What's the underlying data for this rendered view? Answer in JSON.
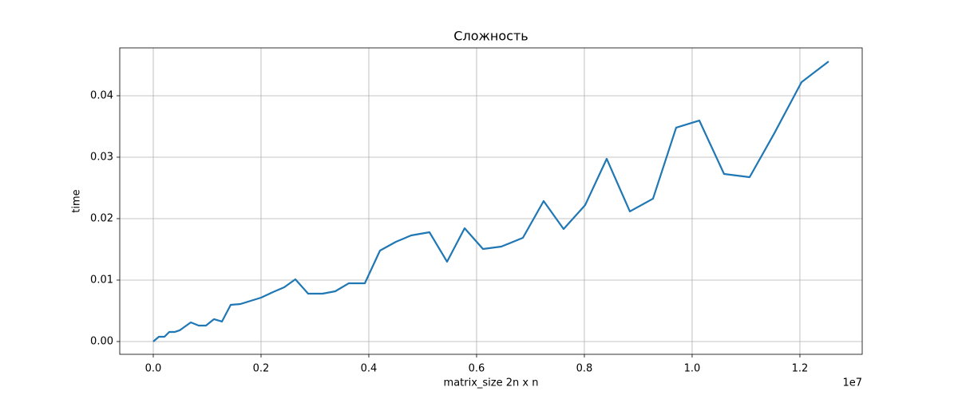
{
  "chart_data": {
    "type": "line",
    "title": "Сложность",
    "xlabel": "matrix_size 2n x n",
    "ylabel": "time",
    "x_offset_label": "1e7",
    "x": [
      0,
      103704,
      207407,
      296296,
      400000,
      488889,
      696296,
      844444,
      977778,
      1125926,
      1274074,
      1437037,
      1614815,
      2000000,
      2222222,
      2429630,
      2637037,
      2874074,
      3140741,
      3377778,
      3629630,
      3925926,
      4207407,
      4503704,
      4785185,
      5125926,
      5451852,
      5777778,
      6118519,
      6459259,
      6859259,
      7244444,
      7614815,
      8014815,
      8414815,
      8844444,
      9274074,
      9703704,
      10133333,
      10592593,
      11066667,
      11525926,
      12029630,
      12533333
    ],
    "series": [
      {
        "name": "time",
        "color": "#1f77b4",
        "values": [
          0,
          0.00078,
          0.00078,
          0.00156,
          0.00156,
          0.00182,
          0.00312,
          0.0026,
          0.0026,
          0.00364,
          0.00325,
          0.00597,
          0.0061,
          0.00714,
          0.00805,
          0.00883,
          0.01013,
          0.00779,
          0.00779,
          0.00818,
          0.00948,
          0.00948,
          0.0148,
          0.01623,
          0.01727,
          0.01779,
          0.01299,
          0.01844,
          0.01506,
          0.01545,
          0.01688,
          0.02286,
          0.01831,
          0.02221,
          0.02974,
          0.02117,
          0.02325,
          0.03481,
          0.03597,
          0.02727,
          0.02675,
          0.0339,
          0.04221,
          0.04558
        ]
      }
    ],
    "xlim": [
      -622000,
      13156000
    ],
    "xticks": [
      {
        "value": 0,
        "label": "0.0"
      },
      {
        "value": 2000000,
        "label": "0.2"
      },
      {
        "value": 4000000,
        "label": "0.4"
      },
      {
        "value": 6000000,
        "label": "0.6"
      },
      {
        "value": 8000000,
        "label": "0.8"
      },
      {
        "value": 10000000,
        "label": "1.0"
      },
      {
        "value": 12000000,
        "label": "1.2"
      }
    ],
    "ylim": [
      -0.00208,
      0.04779
    ],
    "yticks": [
      {
        "value": 0,
        "label": "0.00"
      },
      {
        "value": 0.01,
        "label": "0.01"
      },
      {
        "value": 0.02,
        "label": "0.02"
      },
      {
        "value": 0.03,
        "label": "0.03"
      },
      {
        "value": 0.04,
        "label": "0.04"
      }
    ],
    "grid": true
  }
}
